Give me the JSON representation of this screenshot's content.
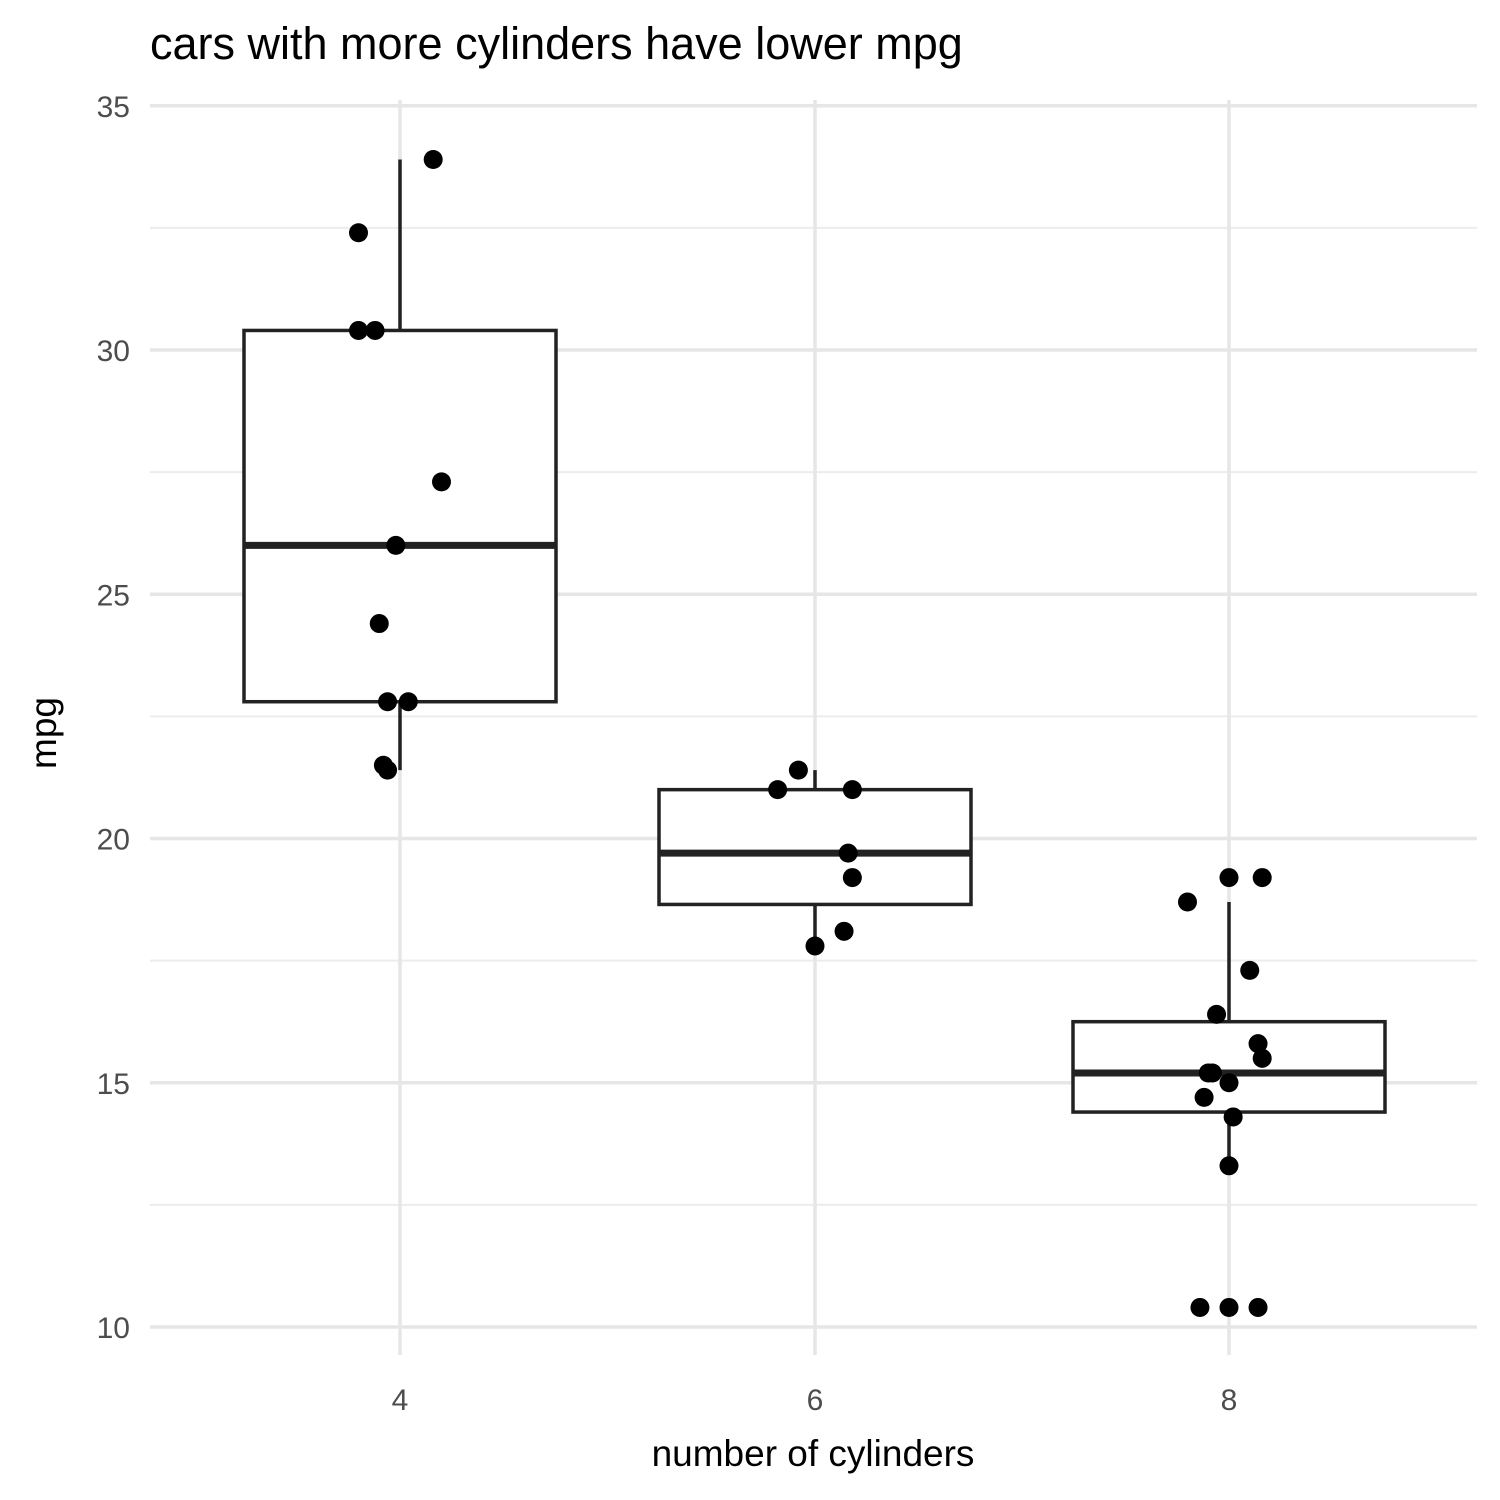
{
  "chart_data": {
    "type": "box",
    "title": "cars with more cylinders have lower mpg",
    "xlabel": "number of cylinders",
    "ylabel": "mpg",
    "categories": [
      "4",
      "6",
      "8"
    ],
    "x_ticks": [
      "4",
      "6",
      "8"
    ],
    "y_ticks": [
      10,
      15,
      20,
      25,
      30,
      35
    ],
    "ylim": [
      9.5,
      35
    ],
    "grid": true,
    "boxes": [
      {
        "category": "4",
        "min": 21.4,
        "q1": 22.8,
        "median": 26.0,
        "q3": 30.4,
        "max": 33.9
      },
      {
        "category": "6",
        "min": 17.8,
        "q1": 18.65,
        "median": 19.7,
        "q3": 21.0,
        "max": 21.4
      },
      {
        "category": "8",
        "min": 13.3,
        "q1": 14.4,
        "median": 15.2,
        "q3": 16.25,
        "max": 18.7
      }
    ],
    "points": [
      {
        "category": "4",
        "jitter": 0.08,
        "y": 33.9
      },
      {
        "category": "4",
        "jitter": -0.1,
        "y": 32.4
      },
      {
        "category": "4",
        "jitter": -0.1,
        "y": 30.4
      },
      {
        "category": "4",
        "jitter": -0.06,
        "y": 30.4
      },
      {
        "category": "4",
        "jitter": 0.1,
        "y": 27.3
      },
      {
        "category": "4",
        "jitter": -0.01,
        "y": 26.0
      },
      {
        "category": "4",
        "jitter": -0.05,
        "y": 24.4
      },
      {
        "category": "4",
        "jitter": -0.03,
        "y": 22.8
      },
      {
        "category": "4",
        "jitter": 0.02,
        "y": 22.8
      },
      {
        "category": "4",
        "jitter": -0.04,
        "y": 21.5
      },
      {
        "category": "4",
        "jitter": -0.03,
        "y": 21.4
      },
      {
        "category": "6",
        "jitter": -0.04,
        "y": 21.4
      },
      {
        "category": "6",
        "jitter": -0.09,
        "y": 21.0
      },
      {
        "category": "6",
        "jitter": 0.09,
        "y": 21.0
      },
      {
        "category": "6",
        "jitter": 0.08,
        "y": 19.7
      },
      {
        "category": "6",
        "jitter": 0.09,
        "y": 19.2
      },
      {
        "category": "6",
        "jitter": 0.07,
        "y": 18.1
      },
      {
        "category": "6",
        "jitter": 0.0,
        "y": 17.8
      },
      {
        "category": "8",
        "jitter": 0.0,
        "y": 19.2
      },
      {
        "category": "8",
        "jitter": 0.08,
        "y": 19.2
      },
      {
        "category": "8",
        "jitter": -0.1,
        "y": 18.7
      },
      {
        "category": "8",
        "jitter": 0.05,
        "y": 17.3
      },
      {
        "category": "8",
        "jitter": -0.03,
        "y": 16.4
      },
      {
        "category": "8",
        "jitter": 0.07,
        "y": 15.8
      },
      {
        "category": "8",
        "jitter": 0.08,
        "y": 15.5
      },
      {
        "category": "8",
        "jitter": -0.05,
        "y": 15.2
      },
      {
        "category": "8",
        "jitter": -0.04,
        "y": 15.2
      },
      {
        "category": "8",
        "jitter": 0.0,
        "y": 15.0
      },
      {
        "category": "8",
        "jitter": -0.06,
        "y": 14.7
      },
      {
        "category": "8",
        "jitter": 0.01,
        "y": 14.3
      },
      {
        "category": "8",
        "jitter": 0.0,
        "y": 13.3
      },
      {
        "category": "8",
        "jitter": -0.07,
        "y": 10.4
      },
      {
        "category": "8",
        "jitter": 0.0,
        "y": 10.4
      },
      {
        "category": "8",
        "jitter": 0.07,
        "y": 10.4
      }
    ]
  }
}
